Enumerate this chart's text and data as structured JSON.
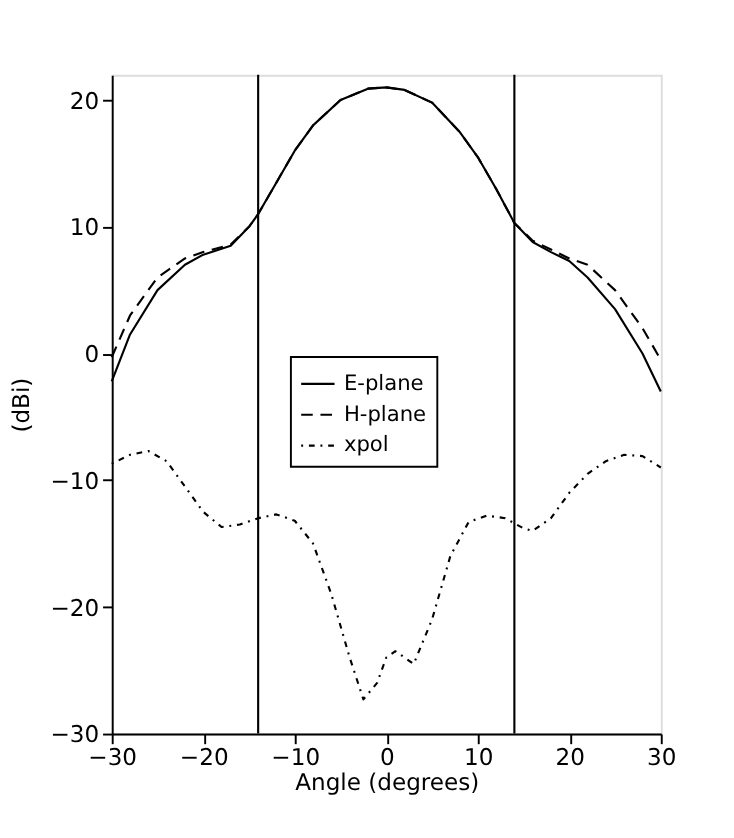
{
  "chart_data": {
    "type": "line",
    "xlabel": "Angle (degrees)",
    "ylabel": "(dBi)",
    "xlim": [
      -30,
      30
    ],
    "ylim": [
      -30,
      22
    ],
    "xticks": [
      -30,
      -20,
      -10,
      0,
      10,
      20,
      30
    ],
    "yticks": [
      -30,
      -20,
      -10,
      0,
      10,
      20
    ],
    "grid": false,
    "legend": "center",
    "marker": "none",
    "ref_lines": [
      {
        "axis": "x",
        "value": -14,
        "color": "#000000"
      },
      {
        "axis": "x",
        "value": 14,
        "color": "#000000"
      }
    ],
    "series": [
      {
        "name": "E-plane",
        "color": "#000000",
        "line_style": "solid",
        "x": [
          -30,
          -28,
          -25,
          -22,
          -20,
          -17,
          -15,
          -14,
          -12,
          -10,
          -8,
          -5,
          -2,
          0,
          2,
          5,
          8,
          10,
          12,
          14,
          16,
          18,
          20,
          22,
          25,
          28,
          30
        ],
        "values": [
          -2.2,
          1.5,
          5,
          7,
          7.8,
          8.5,
          10,
          11,
          13.5,
          16,
          18,
          20,
          20.9,
          21,
          20.8,
          19.8,
          17.5,
          15.5,
          13,
          10.3,
          8.8,
          8,
          7.3,
          6,
          3.5,
          0,
          -3
        ]
      },
      {
        "name": "H-plane",
        "color": "#000000",
        "line_style": "dashed",
        "x": [
          -30,
          -28,
          -25,
          -22,
          -20,
          -17,
          -15,
          -14,
          -12,
          -10,
          -8,
          -5,
          -2,
          0,
          2,
          5,
          8,
          10,
          12,
          14,
          16,
          18,
          20,
          22,
          25,
          28,
          30
        ],
        "values": [
          -0.3,
          3,
          6,
          7.5,
          8,
          8.6,
          10,
          11,
          13.5,
          16,
          18,
          20,
          20.9,
          21,
          20.8,
          19.8,
          17.5,
          15.5,
          13,
          10.3,
          8.9,
          8.2,
          7.5,
          7,
          5,
          2,
          -0.5
        ]
      },
      {
        "name": "xpol",
        "color": "#000000",
        "line_style": "dotted",
        "x": [
          -30,
          -28,
          -26,
          -24,
          -22,
          -20,
          -18,
          -16,
          -14,
          -12,
          -10,
          -8,
          -6,
          -4,
          -2.5,
          -1,
          0,
          1,
          3,
          5,
          7,
          9,
          11,
          13,
          15,
          16,
          18,
          20,
          22,
          24,
          26,
          28,
          30
        ],
        "values": [
          -8.7,
          -8,
          -7.7,
          -8.5,
          -10.5,
          -12.5,
          -13.7,
          -13.5,
          -13,
          -12.7,
          -13.2,
          -15,
          -19,
          -24,
          -27.3,
          -26,
          -24,
          -23.5,
          -24.5,
          -21,
          -16,
          -13.3,
          -12.8,
          -13,
          -13.8,
          -14,
          -13,
          -11,
          -9.5,
          -8.5,
          -8,
          -8.1,
          -9
        ]
      }
    ]
  }
}
